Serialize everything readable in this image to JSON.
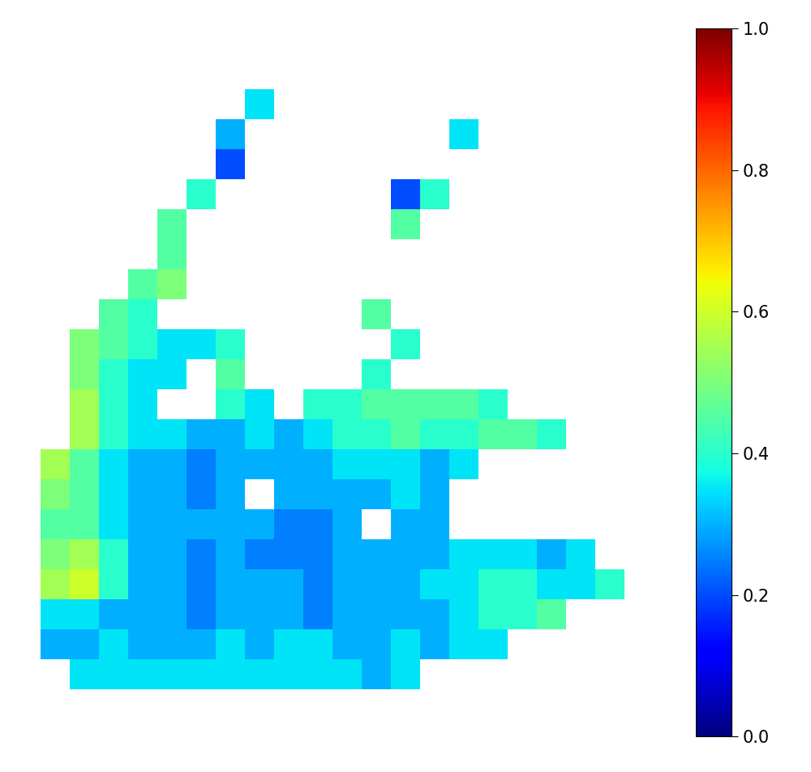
{
  "chart_data": {
    "type": "heatmap",
    "tick_labels": false,
    "cells": [
      [
        null,
        null,
        null,
        null,
        null,
        null,
        null,
        0.35,
        null,
        null,
        null,
        null,
        null,
        null,
        null,
        null,
        null,
        null,
        null,
        null
      ],
      [
        null,
        null,
        null,
        null,
        null,
        null,
        0.3,
        null,
        null,
        null,
        null,
        null,
        null,
        null,
        0.35,
        null,
        null,
        null,
        null,
        null
      ],
      [
        null,
        null,
        null,
        null,
        null,
        null,
        0.2,
        null,
        null,
        null,
        null,
        null,
        null,
        null,
        null,
        null,
        null,
        null,
        null,
        null
      ],
      [
        null,
        null,
        null,
        null,
        null,
        0.4,
        null,
        null,
        null,
        null,
        null,
        null,
        0.2,
        0.4,
        null,
        null,
        null,
        null,
        null,
        null
      ],
      [
        null,
        null,
        null,
        null,
        0.45,
        null,
        null,
        null,
        null,
        null,
        null,
        null,
        0.45,
        null,
        null,
        null,
        null,
        null,
        null,
        null
      ],
      [
        null,
        null,
        null,
        null,
        0.45,
        null,
        null,
        null,
        null,
        null,
        null,
        null,
        null,
        null,
        null,
        null,
        null,
        null,
        null,
        null
      ],
      [
        null,
        null,
        null,
        0.45,
        0.5,
        null,
        null,
        null,
        null,
        null,
        null,
        null,
        null,
        null,
        null,
        null,
        null,
        null,
        null,
        null
      ],
      [
        null,
        null,
        0.45,
        0.4,
        null,
        null,
        null,
        null,
        null,
        null,
        null,
        0.45,
        null,
        null,
        null,
        null,
        null,
        null,
        null,
        null
      ],
      [
        null,
        0.5,
        0.45,
        0.4,
        0.35,
        0.35,
        0.4,
        null,
        null,
        null,
        null,
        null,
        0.4,
        null,
        null,
        null,
        null,
        null,
        null,
        null
      ],
      [
        null,
        0.5,
        0.4,
        0.35,
        0.35,
        null,
        0.45,
        null,
        null,
        null,
        null,
        0.4,
        null,
        null,
        null,
        null,
        null,
        null,
        null,
        null
      ],
      [
        null,
        0.55,
        0.4,
        0.35,
        null,
        null,
        0.4,
        0.35,
        null,
        0.4,
        0.4,
        0.45,
        0.45,
        0.45,
        0.45,
        0.4,
        null,
        null,
        null,
        null
      ],
      [
        null,
        0.55,
        0.4,
        0.35,
        0.35,
        0.3,
        0.3,
        0.35,
        0.3,
        0.35,
        0.4,
        0.4,
        0.45,
        0.4,
        0.4,
        0.45,
        0.45,
        0.4,
        null,
        null
      ],
      [
        0.55,
        0.45,
        0.35,
        0.3,
        0.3,
        0.25,
        0.3,
        0.3,
        0.3,
        0.3,
        0.35,
        0.35,
        0.35,
        0.3,
        0.35,
        null,
        null,
        null,
        null,
        null
      ],
      [
        0.5,
        0.45,
        0.35,
        0.3,
        0.3,
        0.25,
        0.3,
        null,
        0.3,
        0.3,
        0.3,
        0.3,
        0.35,
        0.3,
        null,
        null,
        null,
        null,
        null,
        null
      ],
      [
        0.45,
        0.45,
        0.35,
        0.3,
        0.3,
        0.3,
        0.3,
        0.3,
        0.25,
        0.25,
        0.3,
        null,
        0.3,
        0.3,
        null,
        null,
        null,
        null,
        null,
        null
      ],
      [
        0.5,
        0.55,
        0.4,
        0.3,
        0.3,
        0.25,
        0.3,
        0.25,
        0.25,
        0.25,
        0.3,
        0.3,
        0.3,
        0.3,
        0.35,
        0.35,
        0.35,
        0.3,
        0.35,
        null
      ],
      [
        0.55,
        0.6,
        0.4,
        0.3,
        0.3,
        0.25,
        0.3,
        0.3,
        0.3,
        0.25,
        0.3,
        0.3,
        0.3,
        0.35,
        0.35,
        0.4,
        0.4,
        0.35,
        0.35,
        0.4
      ],
      [
        0.35,
        0.35,
        0.3,
        0.3,
        0.3,
        0.25,
        0.3,
        0.3,
        0.3,
        0.25,
        0.3,
        0.3,
        0.3,
        0.3,
        0.35,
        0.4,
        0.4,
        0.45,
        null,
        null
      ],
      [
        0.3,
        0.3,
        0.35,
        0.3,
        0.3,
        0.3,
        0.35,
        0.3,
        0.35,
        0.35,
        0.3,
        0.3,
        0.35,
        0.3,
        0.35,
        0.35,
        null,
        null,
        null,
        null
      ],
      [
        null,
        0.35,
        0.35,
        0.35,
        0.35,
        0.35,
        0.35,
        0.35,
        0.35,
        0.35,
        0.35,
        0.3,
        0.35,
        null,
        null,
        null,
        null,
        null,
        null,
        null
      ]
    ],
    "colorbar_range": [
      0,
      1
    ],
    "colorbar_ticks": [
      {
        "value": 0,
        "label": "0.0"
      },
      {
        "value": 0.2,
        "label": "0.2"
      },
      {
        "value": 0.4,
        "label": "0.4"
      },
      {
        "value": 0.6,
        "label": "0.6"
      },
      {
        "value": 0.8,
        "label": "0.8"
      },
      {
        "value": 1,
        "label": "1.0"
      }
    ]
  }
}
